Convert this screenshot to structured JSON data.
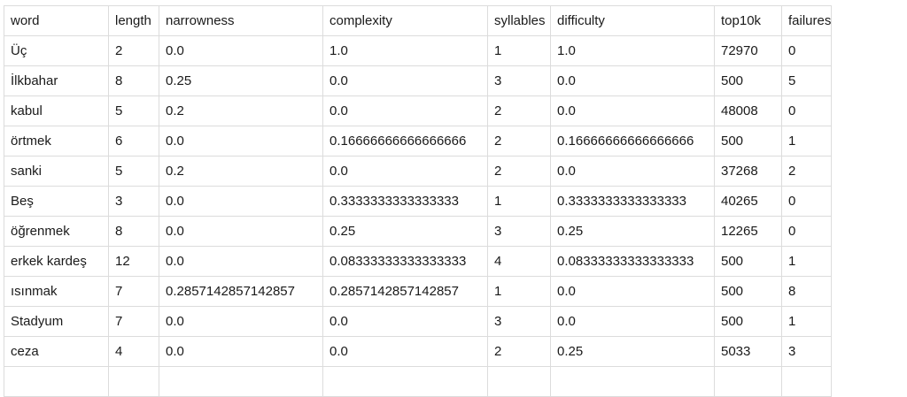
{
  "table": {
    "headers": [
      "word",
      "length",
      "narrowness",
      "complexity",
      "syllables",
      "difficulty",
      "top10k",
      "failures"
    ],
    "rows": [
      [
        "Üç",
        "2",
        "0.0",
        "1.0",
        "1",
        "1.0",
        "72970",
        "0"
      ],
      [
        "İlkbahar",
        "8",
        "0.25",
        "0.0",
        "3",
        "0.0",
        "500",
        "5"
      ],
      [
        "kabul",
        "5",
        "0.2",
        "0.0",
        "2",
        "0.0",
        "48008",
        "0"
      ],
      [
        "örtmek",
        "6",
        "0.0",
        "0.16666666666666666",
        "2",
        "0.16666666666666666",
        "500",
        "1"
      ],
      [
        "sanki",
        "5",
        "0.2",
        "0.0",
        "2",
        "0.0",
        "37268",
        "2"
      ],
      [
        "Beş",
        "3",
        "0.0",
        "0.3333333333333333",
        "1",
        "0.3333333333333333",
        "40265",
        "0"
      ],
      [
        "öğrenmek",
        "8",
        "0.0",
        "0.25",
        "3",
        "0.25",
        "12265",
        "0"
      ],
      [
        "erkek kardeş",
        "12",
        "0.0",
        "0.08333333333333333",
        "4",
        "0.08333333333333333",
        "500",
        "1"
      ],
      [
        "ısınmak",
        "7",
        "0.2857142857142857",
        "0.2857142857142857",
        "1",
        "0.0",
        "500",
        "8"
      ],
      [
        "Stadyum",
        "7",
        "0.0",
        "0.0",
        "3",
        "0.0",
        "500",
        "1"
      ],
      [
        "ceza",
        "4",
        "0.0",
        "0.0",
        "2",
        "0.25",
        "5033",
        "3"
      ]
    ]
  }
}
